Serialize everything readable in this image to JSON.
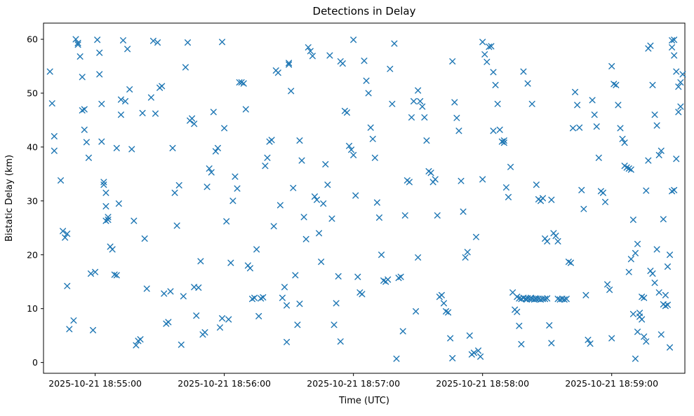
{
  "figure": {
    "title": "Detections in Delay"
  },
  "chart_data": {
    "type": "scatter",
    "title": "Detections in Delay",
    "xlabel": "Time (UTC)",
    "ylabel": "Bistatic Delay (km)",
    "marker": "x",
    "marker_color": "#1f77b4",
    "x_unit": "seconds relative to 2025-10-21 18:55:00 UTC",
    "xlim": [
      -24,
      274
    ],
    "ylim": [
      -2,
      63
    ],
    "grid": false,
    "legend": "none",
    "xticks": [
      {
        "value": 0,
        "label": "2025-10-21 18:55:00"
      },
      {
        "value": 60,
        "label": "2025-10-21 18:56:00"
      },
      {
        "value": 120,
        "label": "2025-10-21 18:57:00"
      },
      {
        "value": 180,
        "label": "2025-10-21 18:58:00"
      },
      {
        "value": 240,
        "label": "2025-10-21 18:59:00"
      }
    ],
    "yticks": [
      0,
      10,
      20,
      30,
      40,
      50,
      60
    ],
    "points": [
      [
        -21,
        54
      ],
      [
        -20,
        48.1
      ],
      [
        -19,
        42
      ],
      [
        -19,
        39.3
      ],
      [
        -16,
        33.8
      ],
      [
        -15,
        24.4
      ],
      [
        -14,
        23.2
      ],
      [
        -13,
        23.9
      ],
      [
        -13,
        14.2
      ],
      [
        -12,
        6.2
      ],
      [
        -10,
        7.8
      ],
      [
        -9,
        60
      ],
      [
        -8,
        59.3
      ],
      [
        -8,
        59
      ],
      [
        -7,
        56.8
      ],
      [
        -6,
        53
      ],
      [
        -6,
        46.8
      ],
      [
        -5,
        47
      ],
      [
        -5,
        43.2
      ],
      [
        -4,
        40.9
      ],
      [
        -3,
        38
      ],
      [
        -2,
        16.5
      ],
      [
        -1,
        6
      ],
      [
        0,
        16.8
      ],
      [
        1,
        59.9
      ],
      [
        2,
        57.5
      ],
      [
        2,
        53.5
      ],
      [
        3,
        48
      ],
      [
        3,
        41
      ],
      [
        4,
        33.5
      ],
      [
        4,
        33
      ],
      [
        5,
        31.5
      ],
      [
        5,
        29
      ],
      [
        5,
        26.3
      ],
      [
        6,
        27
      ],
      [
        6,
        26.5
      ],
      [
        7,
        21.5
      ],
      [
        8,
        21
      ],
      [
        9,
        16.3
      ],
      [
        10,
        16.2
      ],
      [
        10,
        39.8
      ],
      [
        11,
        29.5
      ],
      [
        12,
        46
      ],
      [
        12,
        48.8
      ],
      [
        13,
        59.8
      ],
      [
        14,
        48.5
      ],
      [
        15,
        58.2
      ],
      [
        16,
        50.7
      ],
      [
        17,
        39.6
      ],
      [
        18,
        26.3
      ],
      [
        19,
        3.2
      ],
      [
        20,
        4
      ],
      [
        21,
        4.3
      ],
      [
        22,
        46.3
      ],
      [
        23,
        23
      ],
      [
        24,
        13.7
      ],
      [
        26,
        49.2
      ],
      [
        27,
        59.7
      ],
      [
        28,
        46.2
      ],
      [
        29,
        59.4
      ],
      [
        30,
        51
      ],
      [
        31,
        51.3
      ],
      [
        32,
        12.8
      ],
      [
        33,
        7.2
      ],
      [
        34,
        7.5
      ],
      [
        35,
        13.2
      ],
      [
        36,
        39.8
      ],
      [
        37,
        31.5
      ],
      [
        38,
        25.4
      ],
      [
        39,
        32.9
      ],
      [
        40,
        3.3
      ],
      [
        41,
        12.3
      ],
      [
        42,
        54.8
      ],
      [
        43,
        59.4
      ],
      [
        44,
        44.9
      ],
      [
        45,
        45.3
      ],
      [
        46,
        44.3
      ],
      [
        46,
        14
      ],
      [
        47,
        8.7
      ],
      [
        48,
        13.9
      ],
      [
        49,
        18.8
      ],
      [
        50,
        5.2
      ],
      [
        51,
        5.6
      ],
      [
        52,
        32.6
      ],
      [
        53,
        36
      ],
      [
        54,
        35.3
      ],
      [
        55,
        46.5
      ],
      [
        56,
        39.2
      ],
      [
        57,
        39.8
      ],
      [
        58,
        6.5
      ],
      [
        59,
        8.2
      ],
      [
        59,
        59.5
      ],
      [
        60,
        43.5
      ],
      [
        61,
        26.2
      ],
      [
        62,
        8
      ],
      [
        63,
        18.5
      ],
      [
        64,
        30
      ],
      [
        65,
        34.5
      ],
      [
        66,
        32.3
      ],
      [
        67,
        52
      ],
      [
        68,
        52
      ],
      [
        69,
        51.8
      ],
      [
        70,
        47
      ],
      [
        71,
        18
      ],
      [
        72,
        17.5
      ],
      [
        73,
        11.8
      ],
      [
        74,
        12
      ],
      [
        75,
        21
      ],
      [
        76,
        8.6
      ],
      [
        77,
        11.9
      ],
      [
        78,
        12.1
      ],
      [
        79,
        36.5
      ],
      [
        80,
        38
      ],
      [
        81,
        41
      ],
      [
        82,
        41.3
      ],
      [
        83,
        25.3
      ],
      [
        84,
        54.2
      ],
      [
        85,
        53.8
      ],
      [
        86,
        29.2
      ],
      [
        87,
        12
      ],
      [
        88,
        14
      ],
      [
        89,
        10.6
      ],
      [
        89,
        3.8
      ],
      [
        90,
        55.3
      ],
      [
        90,
        55.6
      ],
      [
        91,
        50.4
      ],
      [
        92,
        32.4
      ],
      [
        93,
        16.2
      ],
      [
        94,
        7
      ],
      [
        95,
        10.9
      ],
      [
        95,
        41.2
      ],
      [
        96,
        37.5
      ],
      [
        97,
        27
      ],
      [
        98,
        22.9
      ],
      [
        99,
        58.5
      ],
      [
        100,
        57.8
      ],
      [
        101,
        56.9
      ],
      [
        102,
        30.8
      ],
      [
        103,
        30.2
      ],
      [
        104,
        24
      ],
      [
        105,
        18.7
      ],
      [
        106,
        29.5
      ],
      [
        107,
        36.8
      ],
      [
        108,
        33
      ],
      [
        109,
        57
      ],
      [
        110,
        26.7
      ],
      [
        111,
        7
      ],
      [
        112,
        11
      ],
      [
        113,
        16
      ],
      [
        114,
        3.9
      ],
      [
        114,
        55.9
      ],
      [
        115,
        55.5
      ],
      [
        116,
        46.7
      ],
      [
        117,
        46.4
      ],
      [
        118,
        40.2
      ],
      [
        119,
        39.5
      ],
      [
        120,
        38.5
      ],
      [
        120,
        59.9
      ],
      [
        121,
        31
      ],
      [
        122,
        15.9
      ],
      [
        123,
        13
      ],
      [
        124,
        12.7
      ],
      [
        125,
        56
      ],
      [
        126,
        52.3
      ],
      [
        127,
        50
      ],
      [
        128,
        43.6
      ],
      [
        129,
        41.5
      ],
      [
        130,
        38
      ],
      [
        131,
        29.7
      ],
      [
        132,
        26.9
      ],
      [
        133,
        20
      ],
      [
        134,
        15.2
      ],
      [
        135,
        15
      ],
      [
        136,
        15.4
      ],
      [
        137,
        54.5
      ],
      [
        138,
        48
      ],
      [
        139,
        59.2
      ],
      [
        140,
        0.7
      ],
      [
        141,
        15.7
      ],
      [
        142,
        15.9
      ],
      [
        143,
        5.8
      ],
      [
        144,
        27.3
      ],
      [
        145,
        33.8
      ],
      [
        146,
        33.5
      ],
      [
        147,
        45.5
      ],
      [
        148,
        48.5
      ],
      [
        149,
        9.5
      ],
      [
        150,
        50.5
      ],
      [
        150,
        19.5
      ],
      [
        151,
        48.5
      ],
      [
        152,
        47.5
      ],
      [
        153,
        45.5
      ],
      [
        154,
        41.2
      ],
      [
        155,
        35.5
      ],
      [
        156,
        35.2
      ],
      [
        157,
        33.5
      ],
      [
        158,
        34
      ],
      [
        159,
        27.3
      ],
      [
        160,
        12.2
      ],
      [
        161,
        12.5
      ],
      [
        162,
        11
      ],
      [
        163,
        9.5
      ],
      [
        164,
        9.3
      ],
      [
        165,
        4.5
      ],
      [
        166,
        0.8
      ],
      [
        166,
        55.9
      ],
      [
        167,
        48.3
      ],
      [
        168,
        45.4
      ],
      [
        169,
        43
      ],
      [
        170,
        33.7
      ],
      [
        171,
        28
      ],
      [
        172,
        19.5
      ],
      [
        173,
        20.5
      ],
      [
        174,
        5
      ],
      [
        175,
        1.5
      ],
      [
        176,
        1.8
      ],
      [
        177,
        23.3
      ],
      [
        178,
        2.2
      ],
      [
        179,
        1.1
      ],
      [
        180,
        59.5
      ],
      [
        180,
        34
      ],
      [
        181,
        57.2
      ],
      [
        182,
        55.8
      ],
      [
        183,
        58.6
      ],
      [
        184,
        58.7
      ],
      [
        185,
        53.9
      ],
      [
        185,
        43
      ],
      [
        186,
        51.5
      ],
      [
        187,
        48
      ],
      [
        188,
        43.2
      ],
      [
        189,
        41
      ],
      [
        190,
        41.2
      ],
      [
        190,
        40.8
      ],
      [
        191,
        32.5
      ],
      [
        192,
        30.7
      ],
      [
        193,
        36.3
      ],
      [
        194,
        13
      ],
      [
        195,
        9.8
      ],
      [
        196,
        9.4
      ],
      [
        197,
        6.8
      ],
      [
        198,
        3.4
      ],
      [
        199,
        54
      ],
      [
        201,
        51.8
      ],
      [
        203,
        48
      ],
      [
        205,
        33
      ],
      [
        206,
        30.3
      ],
      [
        207,
        30
      ],
      [
        208,
        30.5
      ],
      [
        209,
        23
      ],
      [
        210,
        22.5
      ],
      [
        196,
        12.2
      ],
      [
        197,
        11.9
      ],
      [
        198,
        11.8
      ],
      [
        199,
        12
      ],
      [
        200,
        11.8
      ],
      [
        200.5,
        11.7
      ],
      [
        201,
        11.9
      ],
      [
        202,
        11.8
      ],
      [
        202.5,
        12
      ],
      [
        203,
        11.8
      ],
      [
        204,
        11.7
      ],
      [
        204.5,
        11.9
      ],
      [
        205,
        11.8
      ],
      [
        206,
        11.8
      ],
      [
        207,
        11.7
      ],
      [
        208,
        11.8
      ],
      [
        209,
        11.8
      ],
      [
        210,
        11.9
      ],
      [
        211,
        6.9
      ],
      [
        212,
        3.6
      ],
      [
        212,
        30.2
      ],
      [
        213,
        24
      ],
      [
        214,
        23.5
      ],
      [
        215,
        22.5
      ],
      [
        215,
        11.8
      ],
      [
        216,
        11.7
      ],
      [
        217,
        11.8
      ],
      [
        218,
        11.7
      ],
      [
        219,
        11.8
      ],
      [
        220,
        18.7
      ],
      [
        221,
        18.5
      ],
      [
        222,
        43.5
      ],
      [
        223,
        50.2
      ],
      [
        224,
        47.8
      ],
      [
        225,
        43.6
      ],
      [
        226,
        32
      ],
      [
        227,
        28.5
      ],
      [
        228,
        12.5
      ],
      [
        229,
        4.2
      ],
      [
        230,
        3.5
      ],
      [
        231,
        48.7
      ],
      [
        232,
        46
      ],
      [
        233,
        43.8
      ],
      [
        234,
        38
      ],
      [
        235,
        31.8
      ],
      [
        236,
        31.5
      ],
      [
        237,
        29.8
      ],
      [
        238,
        14.5
      ],
      [
        239,
        13.5
      ],
      [
        240,
        4.5
      ],
      [
        240,
        55
      ],
      [
        241,
        51.7
      ],
      [
        242,
        51.5
      ],
      [
        243,
        47.8
      ],
      [
        244,
        43.5
      ],
      [
        245,
        41.5
      ],
      [
        246,
        40.8
      ],
      [
        246,
        36.5
      ],
      [
        247,
        36.2
      ],
      [
        248,
        36
      ],
      [
        249,
        35.8
      ],
      [
        250,
        26.5
      ],
      [
        251,
        20.3
      ],
      [
        252,
        22
      ],
      [
        253,
        8.5
      ],
      [
        254,
        8
      ],
      [
        255,
        4.8
      ],
      [
        256,
        3.9
      ],
      [
        257,
        58.3
      ],
      [
        258,
        58.8
      ],
      [
        259,
        51.5
      ],
      [
        260,
        46
      ],
      [
        261,
        44
      ],
      [
        262,
        38.5
      ],
      [
        263,
        39.3
      ],
      [
        264,
        26.6
      ],
      [
        265,
        10.5
      ],
      [
        266,
        10.7
      ],
      [
        267,
        2.8
      ],
      [
        268,
        58.5
      ],
      [
        268,
        59.8
      ],
      [
        269,
        59.9
      ],
      [
        269,
        57
      ],
      [
        270,
        54
      ],
      [
        271,
        51.2
      ],
      [
        272,
        52
      ],
      [
        273,
        53.5
      ],
      [
        272,
        47.5
      ],
      [
        271,
        46.5
      ],
      [
        270,
        37.8
      ],
      [
        269,
        32
      ],
      [
        268,
        31.8
      ],
      [
        267,
        20
      ],
      [
        266,
        17.8
      ],
      [
        265,
        12.5
      ],
      [
        264,
        10.8
      ],
      [
        263,
        5.2
      ],
      [
        262,
        13
      ],
      [
        261,
        21
      ],
      [
        260,
        14.8
      ],
      [
        259,
        16.5
      ],
      [
        258,
        17
      ],
      [
        257,
        37.5
      ],
      [
        256,
        31.9
      ],
      [
        255,
        12
      ],
      [
        254,
        12.2
      ],
      [
        253,
        9.2
      ],
      [
        252,
        5.7
      ],
      [
        251,
        0.7
      ],
      [
        250,
        9
      ],
      [
        249,
        19.2
      ],
      [
        248,
        16.8
      ]
    ]
  }
}
